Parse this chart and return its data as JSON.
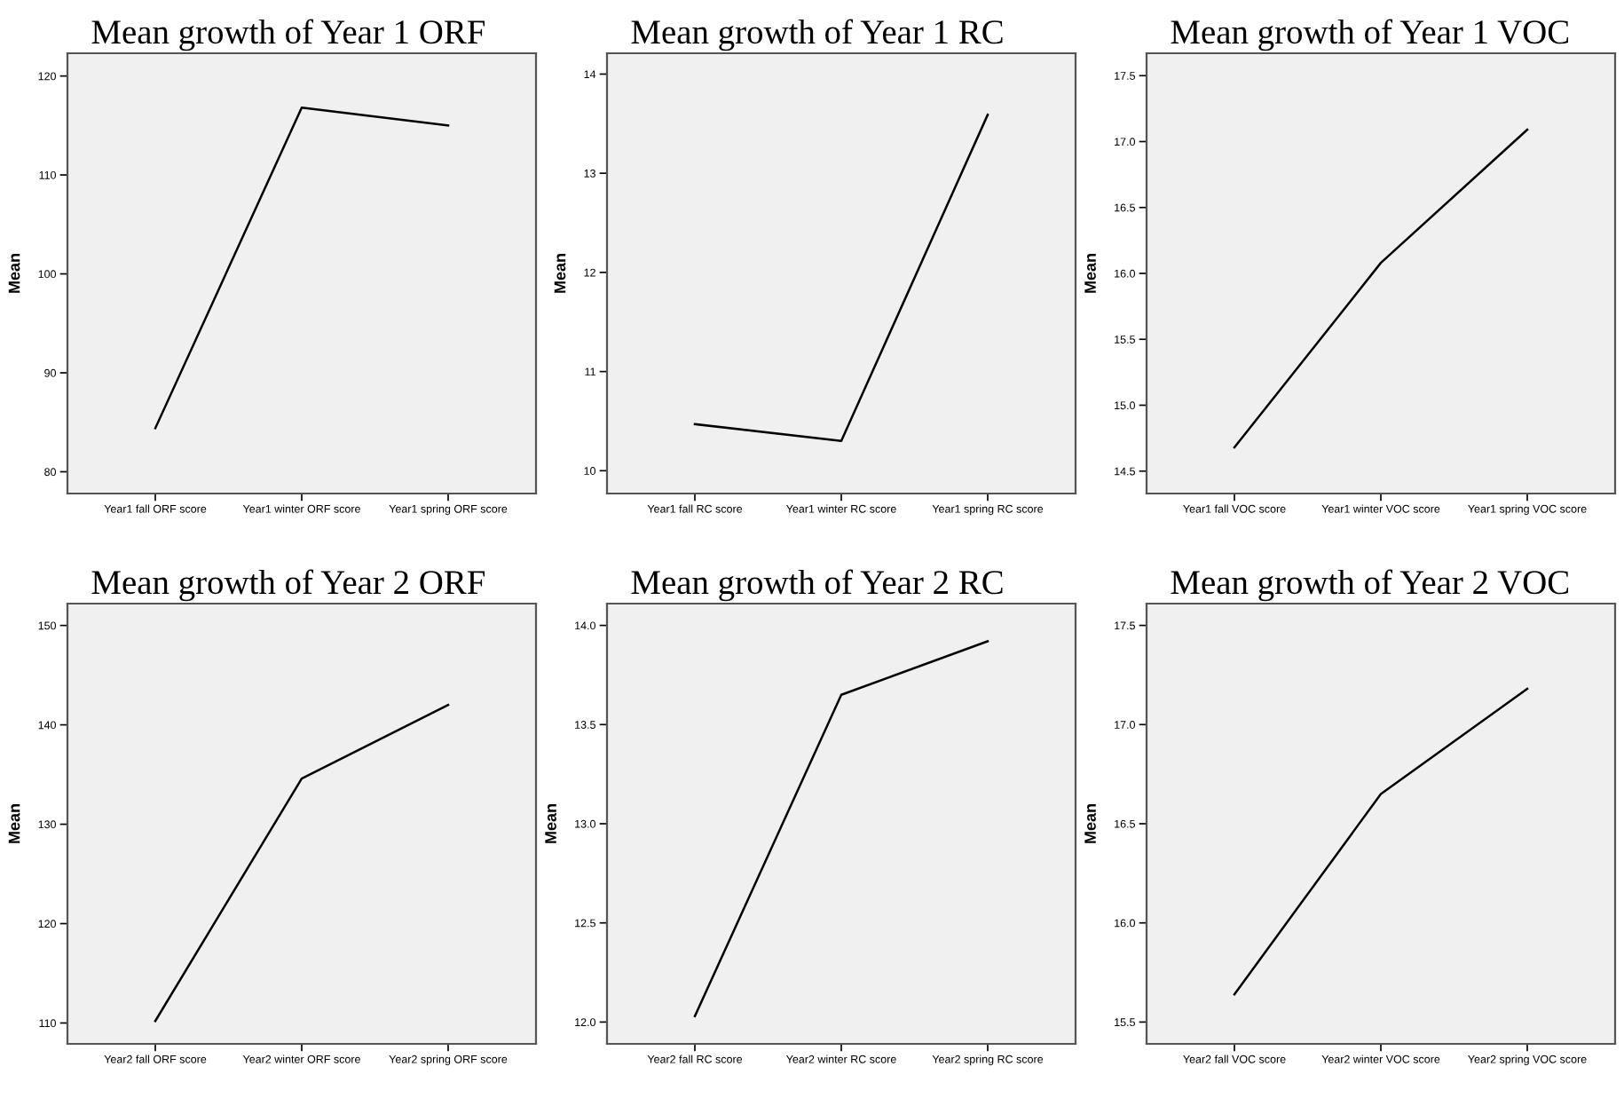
{
  "chart_data": [
    {
      "type": "line",
      "title": "Mean growth of Year 1 ORF",
      "ylabel": "Mean",
      "categories": [
        "Year1 fall ORF score",
        "Year1 winter ORF score",
        "Year1 spring ORF score"
      ],
      "series": [
        {
          "color": "#000000",
          "values": [
            84.4,
            116.8,
            115.0
          ]
        }
      ],
      "ylim": [
        77.8,
        122.3
      ],
      "yticks": [
        80,
        90,
        100,
        110,
        120
      ],
      "grid": false,
      "marker": "none",
      "line_style": "solid"
    },
    {
      "type": "line",
      "title": "Mean growth of Year 1 RC",
      "ylabel": "Mean",
      "categories": [
        "Year1 fall RC score",
        "Year1 winter RC score",
        "Year1 spring RC score"
      ],
      "series": [
        {
          "color": "#000000",
          "values": [
            10.47,
            10.3,
            13.59
          ]
        }
      ],
      "ylim": [
        9.77,
        14.21
      ],
      "yticks": [
        10,
        11,
        12,
        13,
        14
      ],
      "grid": false,
      "marker": "none",
      "line_style": "solid"
    },
    {
      "type": "line",
      "title": "Mean growth of Year 1 VOC",
      "ylabel": "Mean",
      "categories": [
        "Year1 fall VOC score",
        "Year1 winter VOC score",
        "Year1 spring VOC score"
      ],
      "series": [
        {
          "color": "#000000",
          "values": [
            14.68,
            16.08,
            17.09
          ]
        }
      ],
      "ylim": [
        14.33,
        17.67
      ],
      "yticks": [
        14.5,
        {
          "value": 15,
          "label": "15.0"
        },
        15.5,
        {
          "value": 16,
          "label": "16.0"
        },
        16.5,
        {
          "value": 17,
          "label": "17.0"
        },
        17.5
      ],
      "grid": false,
      "marker": "none",
      "line_style": "solid"
    },
    {
      "type": "line",
      "title": "Mean growth of Year 2 ORF",
      "ylabel": "Mean",
      "categories": [
        "Year2 fall ORF score",
        "Year2 winter ORF score",
        "Year2 spring ORF score"
      ],
      "series": [
        {
          "color": "#000000",
          "values": [
            110.2,
            134.6,
            142.0
          ]
        }
      ],
      "ylim": [
        107.9,
        152.2
      ],
      "yticks": [
        110,
        120,
        130,
        140,
        150
      ],
      "grid": false,
      "marker": "none",
      "line_style": "solid"
    },
    {
      "type": "line",
      "title": "Mean growth of Year 2 RC",
      "ylabel": "Mean",
      "categories": [
        "Year2 fall RC score",
        "Year2 winter RC score",
        "Year2 spring RC score"
      ],
      "series": [
        {
          "color": "#000000",
          "values": [
            12.03,
            13.65,
            13.92
          ]
        }
      ],
      "ylim": [
        11.89,
        14.11
      ],
      "yticks": [
        {
          "value": 12,
          "label": "12.0"
        },
        12.5,
        {
          "value": 13,
          "label": "13.0"
        },
        13.5,
        {
          "value": 14,
          "label": "14.0"
        }
      ],
      "grid": false,
      "marker": "none",
      "line_style": "solid"
    },
    {
      "type": "line",
      "title": "Mean growth of Year 2 VOC",
      "ylabel": "Mean",
      "categories": [
        "Year2 fall VOC score",
        "Year2 winter VOC score",
        "Year2 spring VOC score"
      ],
      "series": [
        {
          "color": "#000000",
          "values": [
            15.64,
            16.65,
            17.18
          ]
        }
      ],
      "ylim": [
        15.39,
        17.61
      ],
      "yticks": [
        15.5,
        {
          "value": 16,
          "label": "16.0"
        },
        16.5,
        {
          "value": 17,
          "label": "17.0"
        },
        17.5
      ],
      "grid": false,
      "marker": "none",
      "line_style": "solid"
    }
  ]
}
